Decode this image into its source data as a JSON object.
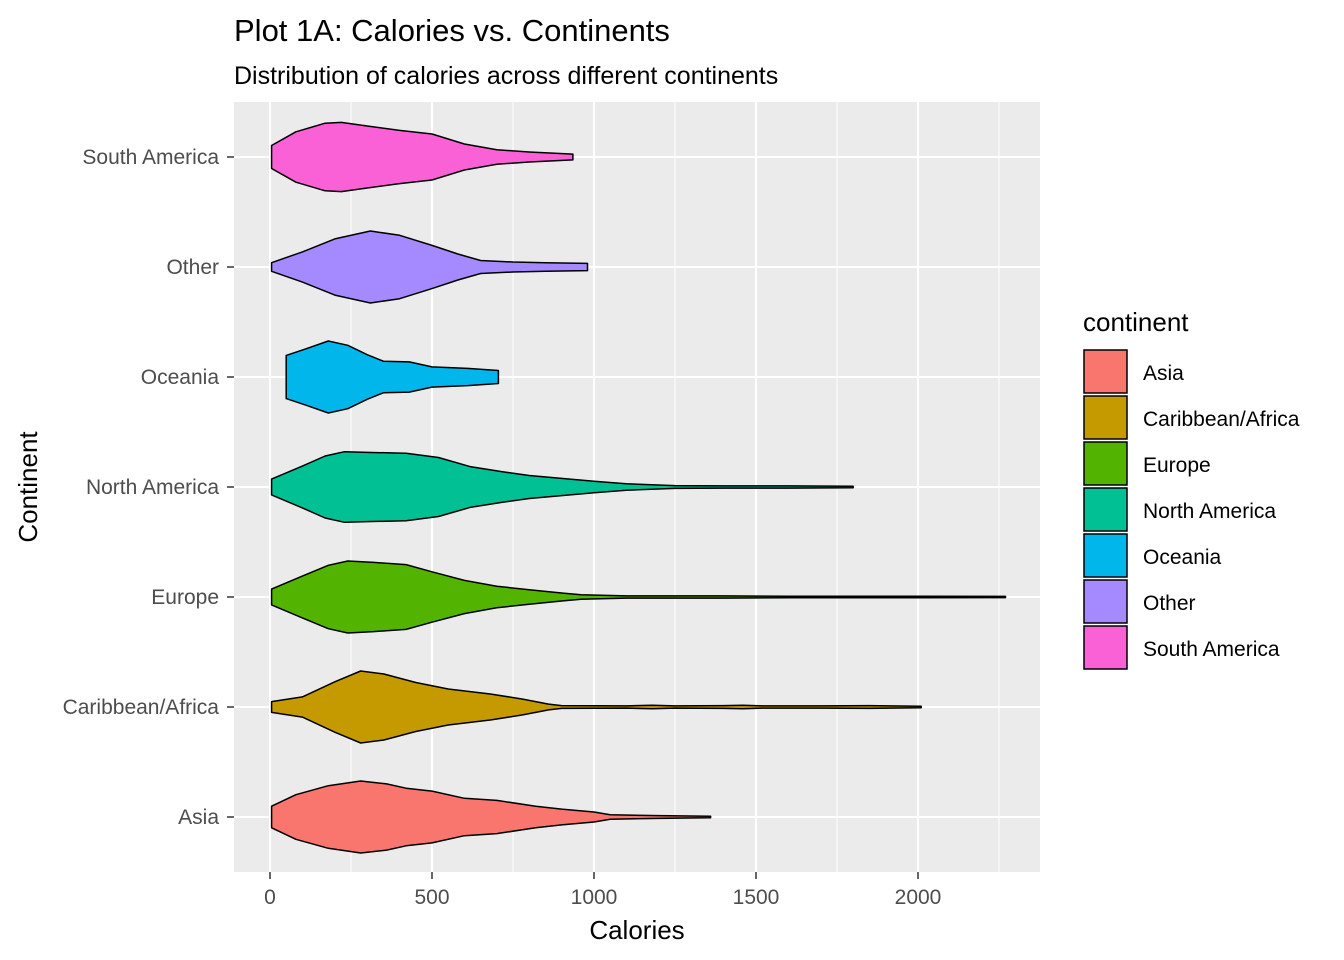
{
  "chart_data": {
    "type": "violin",
    "title": "Plot 1A: Calories vs. Continents",
    "subtitle": "Distribution of calories across different continents",
    "xlabel": "Calories",
    "ylabel": "Continent",
    "xlim": [
      -100,
      2380
    ],
    "x_ticks": [
      0,
      500,
      1000,
      1500,
      2000
    ],
    "x_tick_labels": [
      "0",
      "500",
      "1000",
      "1500",
      "2000"
    ],
    "grid": true,
    "legend": {
      "title": "continent",
      "position": "right"
    },
    "categories": [
      "Asia",
      "Caribbean/Africa",
      "Europe",
      "North America",
      "Oceania",
      "Other",
      "South America"
    ],
    "series": [
      {
        "name": "Asia",
        "color": "#F8766D",
        "min": 5,
        "max": 1360,
        "profile": [
          [
            5,
            0.3
          ],
          [
            80,
            0.62
          ],
          [
            180,
            0.87
          ],
          [
            280,
            1.0
          ],
          [
            360,
            0.92
          ],
          [
            420,
            0.8
          ],
          [
            500,
            0.72
          ],
          [
            600,
            0.52
          ],
          [
            700,
            0.46
          ],
          [
            820,
            0.3
          ],
          [
            900,
            0.22
          ],
          [
            1000,
            0.14
          ],
          [
            1050,
            0.06
          ],
          [
            1200,
            0.04
          ],
          [
            1360,
            0.02
          ]
        ]
      },
      {
        "name": "Caribbean/Africa",
        "color": "#C49A00",
        "min": 5,
        "max": 2010,
        "profile": [
          [
            5,
            0.15
          ],
          [
            100,
            0.28
          ],
          [
            200,
            0.7
          ],
          [
            280,
            1.0
          ],
          [
            350,
            0.92
          ],
          [
            450,
            0.68
          ],
          [
            550,
            0.5
          ],
          [
            680,
            0.36
          ],
          [
            780,
            0.22
          ],
          [
            860,
            0.08
          ],
          [
            900,
            0.04
          ],
          [
            1100,
            0.03
          ],
          [
            1180,
            0.05
          ],
          [
            1250,
            0.03
          ],
          [
            1400,
            0.04
          ],
          [
            1460,
            0.05
          ],
          [
            1520,
            0.03
          ],
          [
            1700,
            0.03
          ],
          [
            1850,
            0.04
          ],
          [
            2010,
            0.02
          ]
        ]
      },
      {
        "name": "Europe",
        "color": "#53B400",
        "min": 5,
        "max": 2270,
        "profile": [
          [
            5,
            0.22
          ],
          [
            100,
            0.58
          ],
          [
            180,
            0.88
          ],
          [
            240,
            1.0
          ],
          [
            320,
            0.96
          ],
          [
            420,
            0.9
          ],
          [
            500,
            0.7
          ],
          [
            600,
            0.46
          ],
          [
            700,
            0.3
          ],
          [
            800,
            0.2
          ],
          [
            900,
            0.11
          ],
          [
            960,
            0.06
          ],
          [
            1100,
            0.03
          ],
          [
            1400,
            0.03
          ],
          [
            1600,
            0.02
          ],
          [
            2000,
            0.02
          ],
          [
            2270,
            0.01
          ]
        ]
      },
      {
        "name": "North America",
        "color": "#00C094",
        "min": 5,
        "max": 1800,
        "profile": [
          [
            5,
            0.22
          ],
          [
            100,
            0.58
          ],
          [
            170,
            0.86
          ],
          [
            230,
            0.98
          ],
          [
            300,
            0.96
          ],
          [
            420,
            0.94
          ],
          [
            520,
            0.82
          ],
          [
            620,
            0.56
          ],
          [
            720,
            0.42
          ],
          [
            800,
            0.32
          ],
          [
            900,
            0.24
          ],
          [
            1000,
            0.16
          ],
          [
            1100,
            0.09
          ],
          [
            1250,
            0.04
          ],
          [
            1400,
            0.03
          ],
          [
            1600,
            0.03
          ],
          [
            1800,
            0.02
          ]
        ]
      },
      {
        "name": "Oceania",
        "color": "#00B6EB",
        "min": 50,
        "max": 705,
        "profile": [
          [
            50,
            0.6
          ],
          [
            110,
            0.78
          ],
          [
            180,
            1.0
          ],
          [
            240,
            0.88
          ],
          [
            300,
            0.62
          ],
          [
            350,
            0.44
          ],
          [
            430,
            0.42
          ],
          [
            500,
            0.28
          ],
          [
            610,
            0.24
          ],
          [
            705,
            0.18
          ]
        ]
      },
      {
        "name": "Other",
        "color": "#A58AFF",
        "min": 5,
        "max": 980,
        "profile": [
          [
            5,
            0.12
          ],
          [
            100,
            0.42
          ],
          [
            200,
            0.78
          ],
          [
            310,
            1.0
          ],
          [
            400,
            0.88
          ],
          [
            500,
            0.6
          ],
          [
            580,
            0.36
          ],
          [
            650,
            0.18
          ],
          [
            750,
            0.14
          ],
          [
            850,
            0.12
          ],
          [
            980,
            0.1
          ]
        ]
      },
      {
        "name": "South America",
        "color": "#FB61D7",
        "min": 5,
        "max": 935,
        "profile": [
          [
            5,
            0.32
          ],
          [
            80,
            0.7
          ],
          [
            170,
            0.94
          ],
          [
            220,
            0.96
          ],
          [
            300,
            0.86
          ],
          [
            400,
            0.74
          ],
          [
            500,
            0.64
          ],
          [
            600,
            0.36
          ],
          [
            700,
            0.2
          ],
          [
            800,
            0.14
          ],
          [
            935,
            0.08
          ]
        ]
      }
    ]
  }
}
